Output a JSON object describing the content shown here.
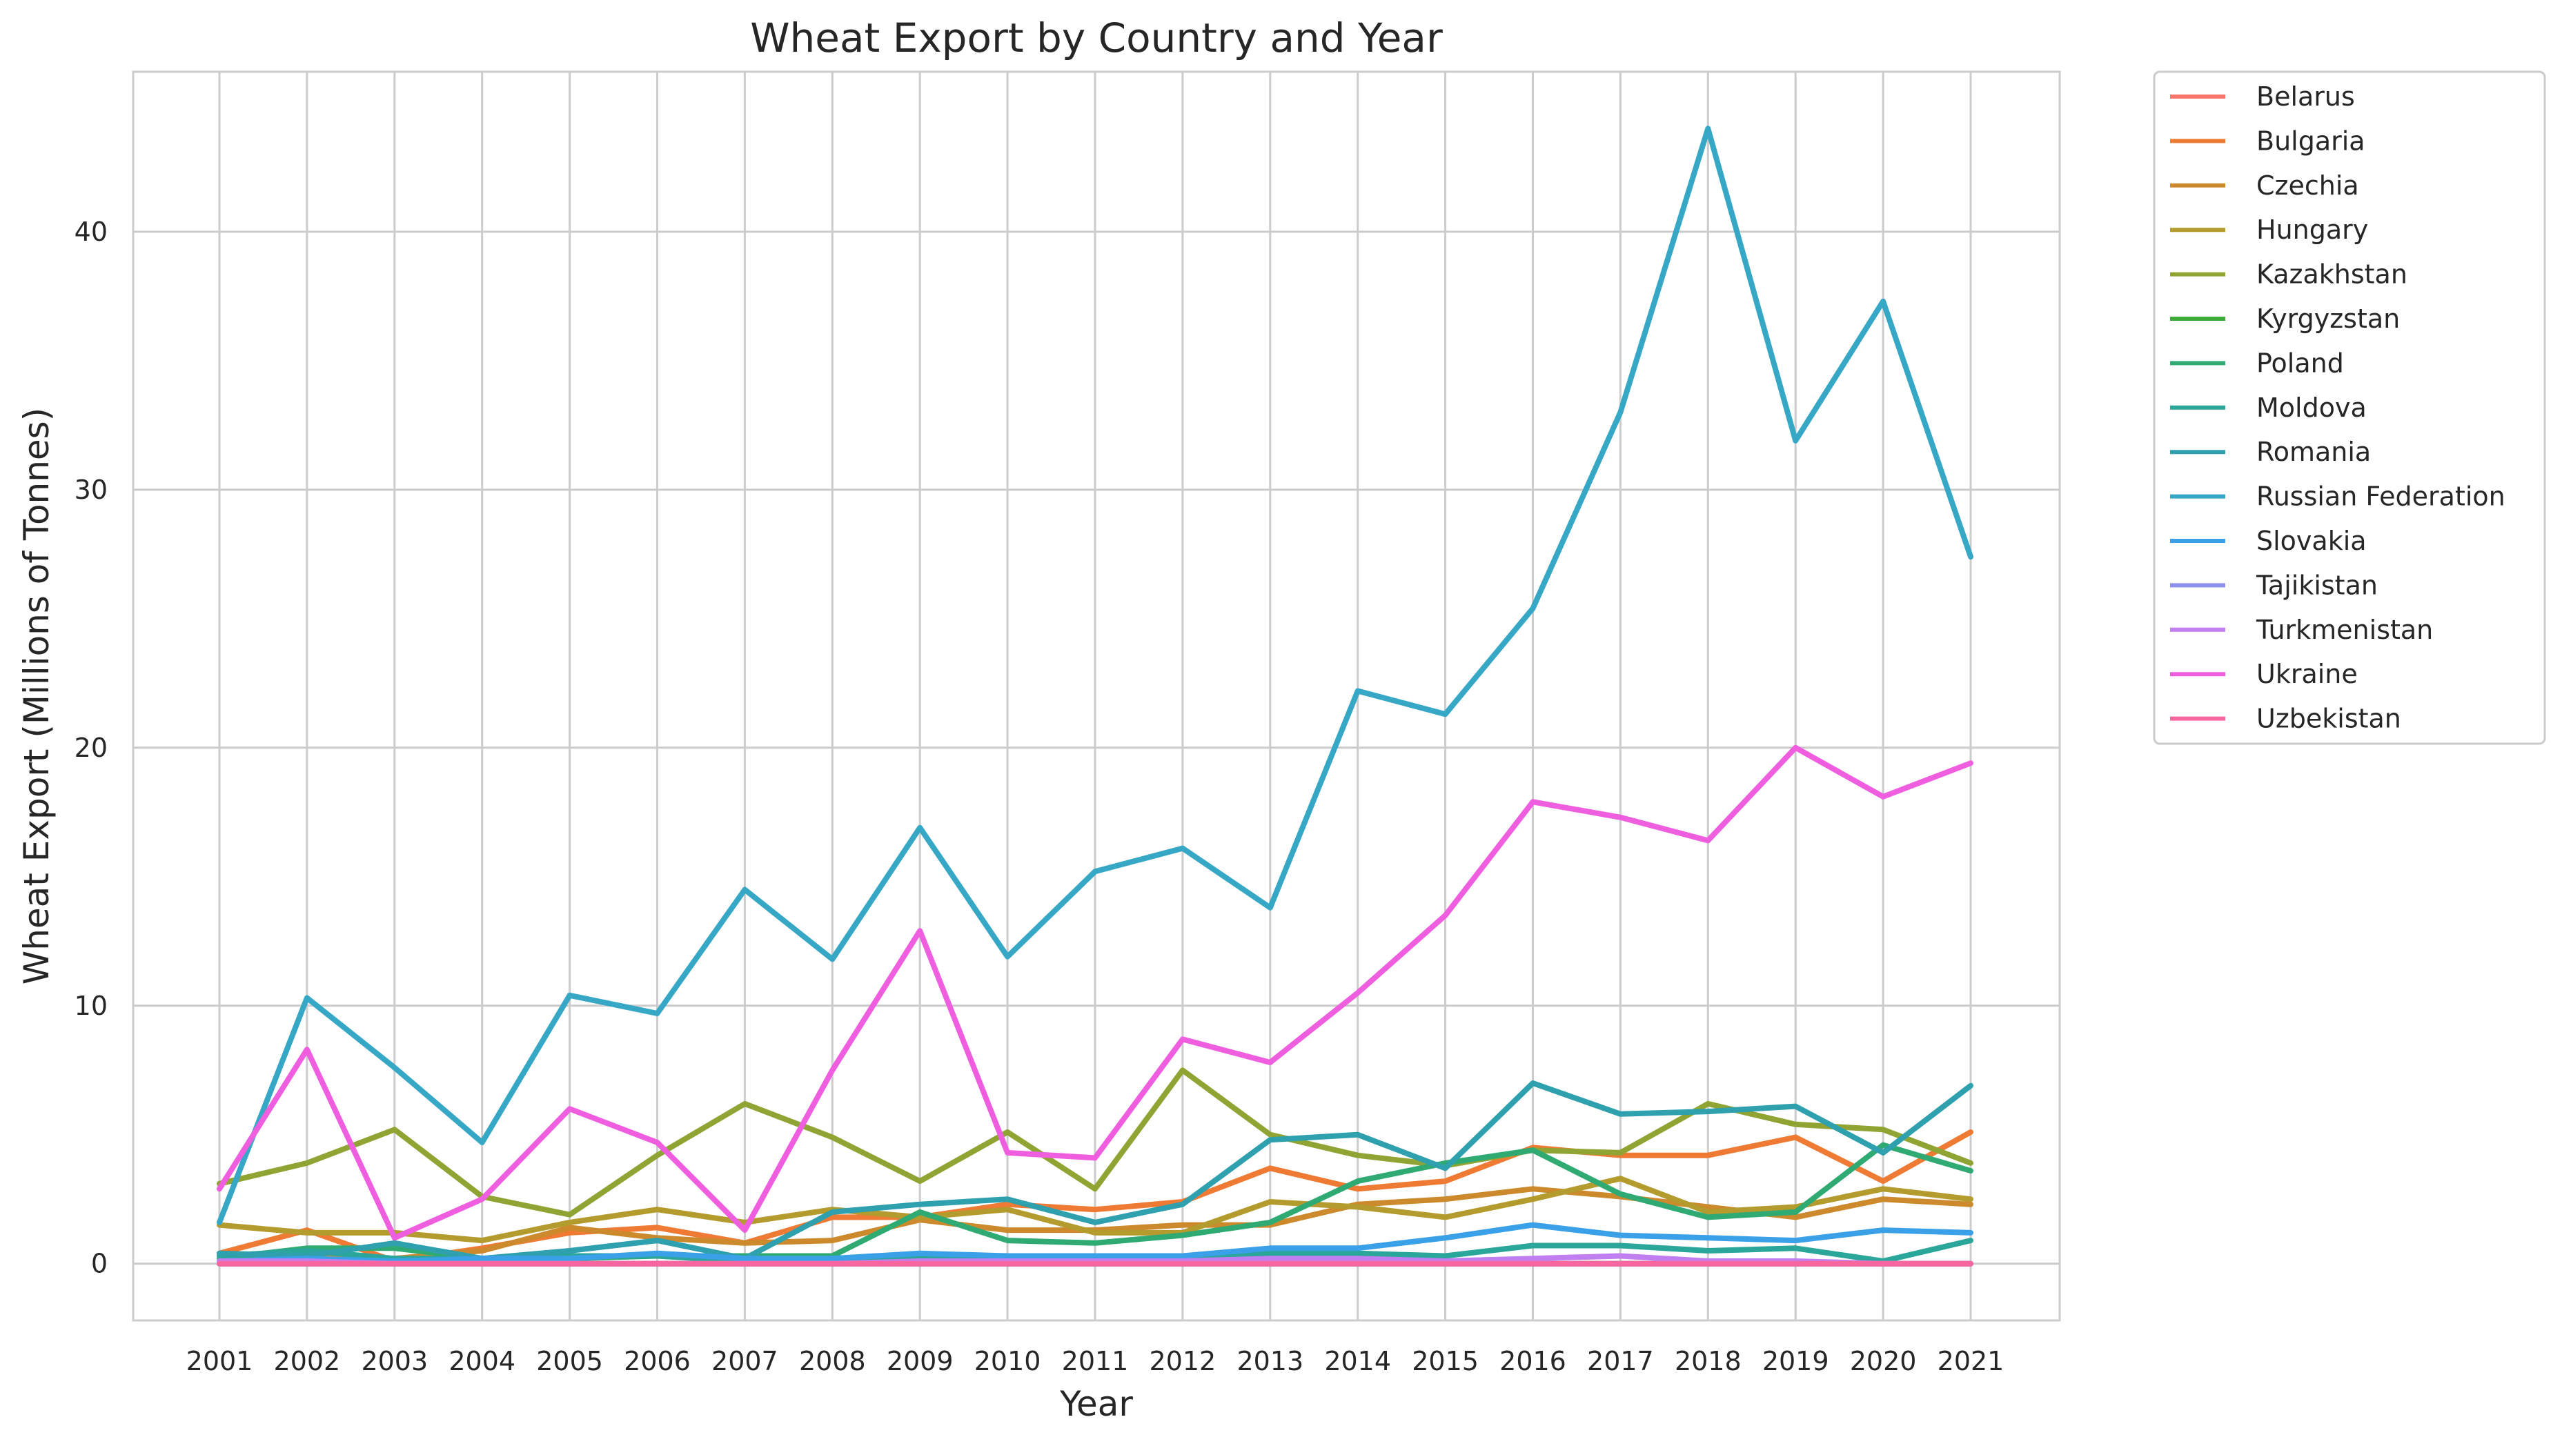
{
  "chart_data": {
    "type": "line",
    "title": "Wheat Export by Country and Year",
    "xlabel": "Year",
    "ylabel": "Wheat Export (Millions of Tonnes)",
    "ylim": [
      -2.2,
      46.2
    ],
    "yticks": [
      0,
      10,
      20,
      30,
      40
    ],
    "grid": true,
    "legend_position": "outside-right-top",
    "categories": [
      "2001",
      "2002",
      "2003",
      "2004",
      "2005",
      "2006",
      "2007",
      "2008",
      "2009",
      "2010",
      "2011",
      "2012",
      "2013",
      "2014",
      "2015",
      "2016",
      "2017",
      "2018",
      "2019",
      "2020",
      "2021"
    ],
    "series": [
      {
        "name": "Belarus",
        "color": "#f8766d",
        "values": [
          0,
          0,
          0,
          0,
          0,
          0,
          0,
          0,
          0,
          0,
          0,
          0,
          0,
          0,
          0,
          0,
          0,
          0,
          0,
          0,
          0
        ]
      },
      {
        "name": "Bulgaria",
        "color": "#ee7a33",
        "values": [
          0.4,
          1.3,
          0.1,
          0.6,
          1.2,
          1.4,
          0.8,
          1.8,
          1.8,
          2.3,
          2.1,
          2.4,
          3.7,
          2.9,
          3.2,
          4.5,
          4.2,
          4.2,
          4.9,
          3.2,
          5.1
        ]
      },
      {
        "name": "Czechia",
        "color": "#cc8a2c",
        "values": [
          0.1,
          0.3,
          0.2,
          0.5,
          1.4,
          1.0,
          0.8,
          0.9,
          1.7,
          1.3,
          1.3,
          1.5,
          1.5,
          2.3,
          2.5,
          2.9,
          2.6,
          2.2,
          1.8,
          2.5,
          2.3
        ]
      },
      {
        "name": "Hungary",
        "color": "#b49b2e",
        "values": [
          1.5,
          1.2,
          1.2,
          0.9,
          1.6,
          2.1,
          1.6,
          2.1,
          1.8,
          2.1,
          1.2,
          1.2,
          2.4,
          2.2,
          1.8,
          2.5,
          3.3,
          2.0,
          2.2,
          2.9,
          2.5
        ]
      },
      {
        "name": "Kazakhstan",
        "color": "#8fa433",
        "values": [
          3.1,
          3.9,
          5.2,
          2.6,
          1.9,
          4.2,
          6.2,
          4.9,
          3.2,
          5.1,
          2.9,
          7.5,
          5.0,
          4.2,
          3.8,
          4.4,
          4.3,
          6.2,
          5.4,
          5.2,
          3.9
        ]
      },
      {
        "name": "Kyrgyzstan",
        "color": "#3daa3a",
        "values": [
          0,
          0,
          0,
          0,
          0,
          0,
          0,
          0,
          0,
          0,
          0,
          0,
          0,
          0,
          0,
          0,
          0,
          0,
          0,
          0,
          0
        ]
      },
      {
        "name": "Poland",
        "color": "#2faa73",
        "values": [
          0.2,
          0.6,
          0.6,
          0.2,
          0.2,
          0.3,
          0.3,
          0.3,
          2.0,
          0.9,
          0.8,
          1.1,
          1.6,
          3.2,
          3.9,
          4.4,
          2.7,
          1.8,
          2.0,
          4.6,
          3.6
        ]
      },
      {
        "name": "Moldova",
        "color": "#2ba69a",
        "values": [
          0.3,
          0.5,
          0.2,
          0.2,
          0.3,
          0.3,
          0.1,
          0.2,
          0.2,
          0.2,
          0.2,
          0.2,
          0.4,
          0.4,
          0.3,
          0.7,
          0.7,
          0.5,
          0.6,
          0.1,
          0.9
        ]
      },
      {
        "name": "Romania",
        "color": "#2ea0ae",
        "values": [
          0.4,
          0.3,
          0.8,
          0.2,
          0.5,
          0.9,
          0.2,
          2.0,
          2.3,
          2.5,
          1.6,
          2.3,
          4.8,
          5.0,
          3.7,
          7.0,
          5.8,
          5.9,
          6.1,
          4.3,
          6.9
        ]
      },
      {
        "name": "Russian Federation",
        "color": "#36a8c6",
        "values": [
          1.6,
          10.3,
          7.6,
          4.7,
          10.4,
          9.7,
          14.5,
          11.8,
          16.9,
          11.9,
          15.2,
          16.1,
          13.8,
          22.2,
          21.3,
          25.4,
          33.0,
          44.0,
          31.9,
          37.3,
          27.4
        ]
      },
      {
        "name": "Slovakia",
        "color": "#3aa0e8",
        "values": [
          0.1,
          0.2,
          0.1,
          0.2,
          0.2,
          0.4,
          0.2,
          0.2,
          0.4,
          0.3,
          0.3,
          0.3,
          0.6,
          0.6,
          1.0,
          1.5,
          1.1,
          1.0,
          0.9,
          1.3,
          1.2
        ]
      },
      {
        "name": "Tajikistan",
        "color": "#8e90ee",
        "values": [
          0,
          0,
          0,
          0,
          0,
          0,
          0,
          0,
          0,
          0,
          0,
          0,
          0,
          0,
          0,
          0,
          0,
          0,
          0,
          0,
          0
        ]
      },
      {
        "name": "Turkmenistan",
        "color": "#c07ef0",
        "values": [
          0.1,
          0.1,
          0,
          0,
          0,
          0,
          0,
          0,
          0.1,
          0.1,
          0.1,
          0.1,
          0.2,
          0.2,
          0.1,
          0.2,
          0.3,
          0.1,
          0.1,
          0,
          0
        ]
      },
      {
        "name": "Ukraine",
        "color": "#f05ee0",
        "values": [
          2.9,
          8.3,
          1.0,
          2.5,
          6.0,
          4.7,
          1.3,
          7.5,
          12.9,
          4.3,
          4.1,
          8.7,
          7.8,
          10.5,
          13.5,
          17.9,
          17.3,
          16.4,
          20.0,
          18.1,
          19.4
        ]
      },
      {
        "name": "Uzbekistan",
        "color": "#f7669f",
        "values": [
          0,
          0,
          0,
          0,
          0,
          0,
          0,
          0,
          0,
          0,
          0,
          0,
          0,
          0,
          0,
          0,
          0,
          0,
          0,
          0,
          0
        ]
      }
    ]
  }
}
